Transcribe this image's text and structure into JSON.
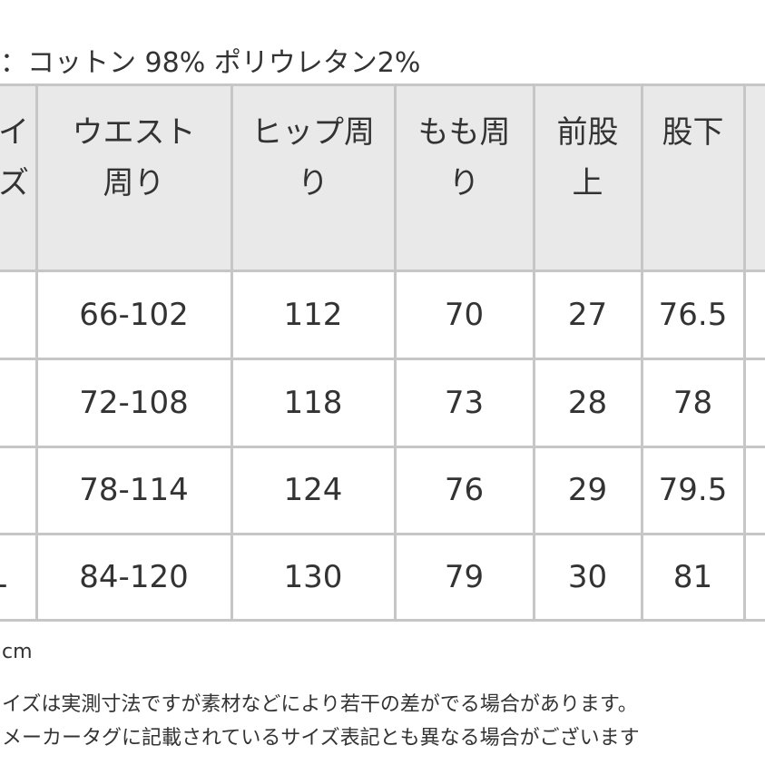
{
  "material": "：コットン 98% ポリウレタン2%",
  "table": {
    "header": [
      [
        "イ",
        "ズ"
      ],
      [
        "ウエスト",
        "周り"
      ],
      [
        "ヒップ周",
        "り"
      ],
      [
        "もも周",
        "り"
      ],
      [
        "前股",
        "上"
      ],
      [
        "股下"
      ]
    ],
    "rows": [
      [
        null,
        "66-102",
        "112",
        "70",
        "27",
        "76.5"
      ],
      [
        null,
        "72-108",
        "118",
        "73",
        "28",
        "78"
      ],
      [
        null,
        "78-114",
        "124",
        "76",
        "29",
        "79.5"
      ],
      [
        "L",
        "84-120",
        "130",
        "79",
        "30",
        "81"
      ]
    ]
  },
  "notes": [
    "cm",
    "イズは実測寸法ですが素材などにより若干の差がでる場合があります。",
    "メーカータグに記載されているサイズ表記とも異なる場合がございます"
  ]
}
